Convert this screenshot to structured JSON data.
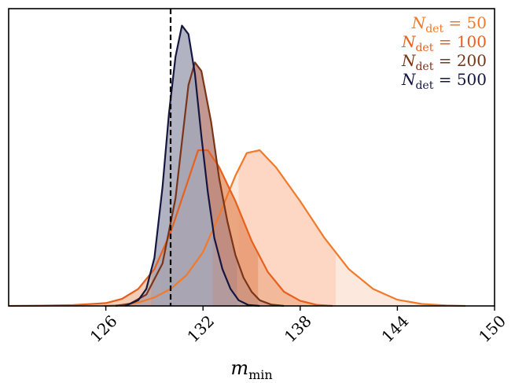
{
  "chart_data": {
    "type": "area",
    "title": "",
    "xlabel": "m",
    "xlabel_sub": "min",
    "ylabel": "",
    "xlim": [
      120,
      150
    ],
    "xticks": [
      126,
      132,
      138,
      144,
      150
    ],
    "y_ticks_shown": false,
    "grid": false,
    "legend_position": "top-right",
    "reference_line": {
      "x": 130,
      "style": "dashed",
      "color": "#000000"
    },
    "series": [
      {
        "name": "N_det = 50",
        "legend": {
          "symbol": "N",
          "sub": "det",
          "rest": " = 50"
        },
        "color": "#f07a2a",
        "fill": "#fcd2bb",
        "shade_interval": [
          134.2,
          140.2
        ],
        "points": [
          [
            125.9,
            0
          ],
          [
            127,
            0.003
          ],
          [
            128,
            0.012
          ],
          [
            129,
            0.03
          ],
          [
            130,
            0.06
          ],
          [
            131,
            0.11
          ],
          [
            132,
            0.19
          ],
          [
            133,
            0.32
          ],
          [
            134,
            0.46
          ],
          [
            134.7,
            0.54
          ],
          [
            135.5,
            0.55
          ],
          [
            136.5,
            0.49
          ],
          [
            138,
            0.37
          ],
          [
            139.5,
            0.24
          ],
          [
            141,
            0.13
          ],
          [
            142.5,
            0.06
          ],
          [
            144,
            0.022
          ],
          [
            145.5,
            0.007
          ],
          [
            147,
            0.002
          ],
          [
            148.2,
            0
          ]
        ]
      },
      {
        "name": "N_det = 100",
        "legend": {
          "symbol": "N",
          "sub": "det",
          "rest": " = 100"
        },
        "color": "#e8601c",
        "fill": "#e89b72",
        "shade_interval": [
          128.8,
          135.4
        ],
        "points": [
          [
            120,
            0
          ],
          [
            122,
            0.001
          ],
          [
            124,
            0.003
          ],
          [
            126,
            0.01
          ],
          [
            127,
            0.025
          ],
          [
            128,
            0.06
          ],
          [
            129,
            0.13
          ],
          [
            130,
            0.26
          ],
          [
            131,
            0.43
          ],
          [
            131.7,
            0.55
          ],
          [
            132.3,
            0.55
          ],
          [
            133,
            0.49
          ],
          [
            134,
            0.37
          ],
          [
            135,
            0.23
          ],
          [
            136,
            0.12
          ],
          [
            137,
            0.05
          ],
          [
            138,
            0.018
          ],
          [
            139,
            0.004
          ],
          [
            140,
            0
          ]
        ]
      },
      {
        "name": "N_det = 200",
        "legend": {
          "symbol": "N",
          "sub": "det",
          "rest": " = 200"
        },
        "color": "#7a3418",
        "fill": "#b98a80",
        "shade_interval": [
          129.4,
          134.1
        ],
        "points": [
          [
            126.6,
            0
          ],
          [
            127.5,
            0.008
          ],
          [
            128.5,
            0.04
          ],
          [
            129.5,
            0.15
          ],
          [
            130.3,
            0.38
          ],
          [
            130.7,
            0.58
          ],
          [
            131.1,
            0.78
          ],
          [
            131.5,
            0.86
          ],
          [
            131.9,
            0.83
          ],
          [
            132.5,
            0.65
          ],
          [
            133,
            0.45
          ],
          [
            133.5,
            0.3
          ],
          [
            134,
            0.18
          ],
          [
            134.5,
            0.1
          ],
          [
            135,
            0.05
          ],
          [
            135.5,
            0.02
          ],
          [
            136.2,
            0.005
          ],
          [
            137,
            0
          ]
        ]
      },
      {
        "name": "N_det = 500",
        "legend": {
          "symbol": "N",
          "sub": "det",
          "rest": " = 500"
        },
        "color": "#15163f",
        "fill": "#a6a8ba",
        "shade_interval": [
          128.9,
          132.6
        ],
        "points": [
          [
            127.2,
            0
          ],
          [
            128,
            0.02
          ],
          [
            128.5,
            0.06
          ],
          [
            129,
            0.17
          ],
          [
            129.5,
            0.42
          ],
          [
            129.9,
            0.68
          ],
          [
            130.3,
            0.88
          ],
          [
            130.7,
            0.99
          ],
          [
            131.1,
            0.96
          ],
          [
            131.5,
            0.82
          ],
          [
            131.9,
            0.6
          ],
          [
            132.3,
            0.4
          ],
          [
            132.7,
            0.24
          ],
          [
            133.2,
            0.13
          ],
          [
            133.7,
            0.06
          ],
          [
            134.2,
            0.02
          ],
          [
            134.8,
            0.003
          ],
          [
            135.5,
            0
          ]
        ]
      }
    ]
  }
}
